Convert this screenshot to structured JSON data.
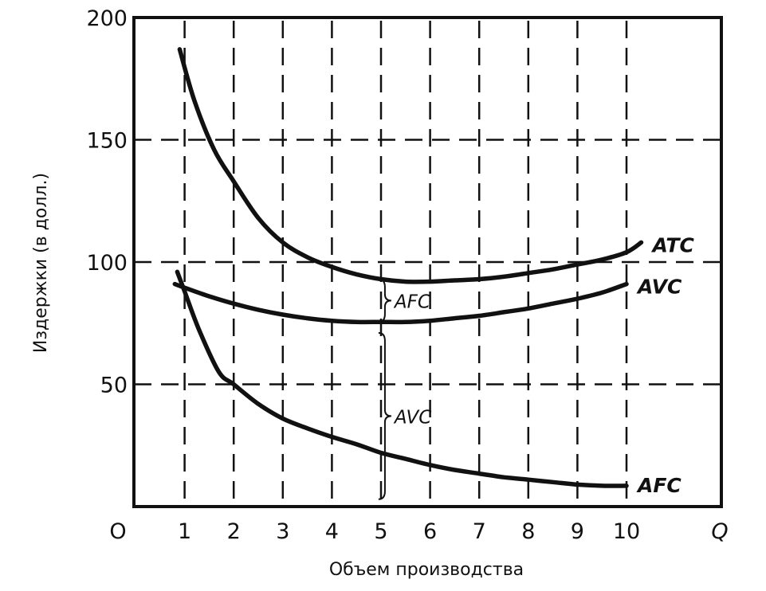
{
  "chart_data": {
    "type": "line",
    "xlabel": "Объем производства",
    "ylabel": "Издержки (в долл.)",
    "origin_label": "O",
    "x_end_label": "Q",
    "xlim": [
      0,
      12.3
    ],
    "ylim": [
      0,
      200
    ],
    "x_ticks": [
      1,
      2,
      3,
      4,
      5,
      6,
      7,
      8,
      9,
      10
    ],
    "y_ticks": [
      50,
      100,
      150,
      200
    ],
    "grid": true,
    "series": [
      {
        "name": "ATC",
        "x": [
          0.9,
          1.2,
          1.6,
          2.0,
          2.5,
          3.0,
          3.5,
          4.0,
          4.5,
          5.0,
          5.5,
          6.0,
          6.5,
          7.0,
          7.5,
          8.0,
          8.5,
          9.0,
          9.5,
          10.0,
          10.3
        ],
        "y": [
          187,
          166,
          146,
          133,
          118,
          108,
          102,
          98,
          95,
          93,
          92,
          92,
          92.5,
          93,
          94,
          95.5,
          97,
          99,
          101,
          104,
          108
        ]
      },
      {
        "name": "AVC",
        "x": [
          0.8,
          1.0,
          1.5,
          2.0,
          2.5,
          3.0,
          3.5,
          4.0,
          4.5,
          5.0,
          5.5,
          6.0,
          6.5,
          7.0,
          7.5,
          8.0,
          8.5,
          9.0,
          9.5,
          10.0
        ],
        "y": [
          91,
          89.5,
          86,
          83,
          80.5,
          78.5,
          77,
          76,
          75.5,
          75.5,
          75.5,
          76,
          77,
          78,
          79.5,
          81,
          83,
          85,
          87.5,
          91
        ]
      },
      {
        "name": "AFC",
        "x": [
          0.85,
          1.0,
          1.3,
          1.7,
          2.0,
          2.5,
          3.0,
          3.5,
          4.0,
          4.5,
          5.0,
          5.5,
          6.0,
          6.5,
          7.0,
          7.5,
          8.0,
          8.5,
          9.0,
          9.5,
          10.0
        ],
        "y": [
          96,
          88,
          72,
          55,
          50,
          42,
          36,
          32,
          28.5,
          25.5,
          22,
          19.5,
          17,
          15,
          13.5,
          12,
          11,
          10,
          9,
          8.5,
          8.5
        ]
      }
    ],
    "annotations": [
      {
        "label": "AFC",
        "x": 4.95,
        "y_from": 75.5,
        "y_to": 93
      },
      {
        "label": "AVC",
        "x": 4.95,
        "y_from": 3,
        "y_to": 71
      }
    ]
  }
}
